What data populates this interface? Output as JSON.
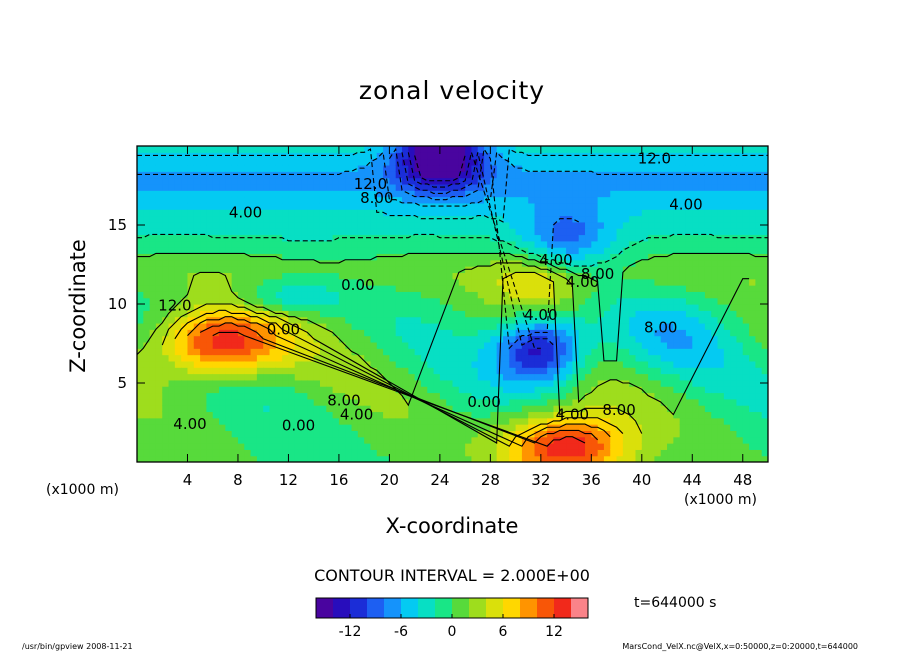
{
  "chart_data": {
    "type": "heatmap",
    "title": "zonal velocity",
    "xlabel": "X-coordinate",
    "ylabel": "Z-coordinate",
    "x_unit": "(x1000 m)",
    "z_unit": "(x1000 m)",
    "xlim": [
      0,
      50
    ],
    "ylim": [
      0,
      20
    ],
    "x_ticks": [
      4,
      8,
      12,
      16,
      20,
      24,
      28,
      32,
      36,
      40,
      44,
      48
    ],
    "y_ticks": [
      5,
      10,
      15
    ],
    "contour_interval_text": "CONTOUR INTERVAL = 2.000E+00",
    "time_text": "t=644000 s",
    "colorbar": {
      "range": [
        -16,
        16
      ],
      "ticks": [
        -12,
        -6,
        0,
        6,
        12
      ]
    },
    "contour_labels": [
      {
        "text": "12.0",
        "x": 41,
        "y": 19.2
      },
      {
        "text": "12.0",
        "x": 18.5,
        "y": 17.6
      },
      {
        "text": "8.00",
        "x": 19,
        "y": 16.7
      },
      {
        "text": "4.00",
        "x": 8.6,
        "y": 15.8
      },
      {
        "text": "4.00",
        "x": 43.5,
        "y": 16.3
      },
      {
        "text": "4.00",
        "x": 33.2,
        "y": 12.8
      },
      {
        "text": "4.00",
        "x": 35.3,
        "y": 11.4
      },
      {
        "text": "8.00",
        "x": 36.5,
        "y": 11.9
      },
      {
        "text": "0.00",
        "x": 17.5,
        "y": 11.2
      },
      {
        "text": "12.0",
        "x": 3,
        "y": 9.9
      },
      {
        "text": "0.00",
        "x": 11.6,
        "y": 8.4
      },
      {
        "text": "8.00",
        "x": 41.5,
        "y": 8.5
      },
      {
        "text": "4.00",
        "x": 32,
        "y": 9.3
      },
      {
        "text": "8.00",
        "x": 16.4,
        "y": 3.9
      },
      {
        "text": "4.00",
        "x": 17.4,
        "y": 3.0
      },
      {
        "text": "0.00",
        "x": 27.5,
        "y": 3.8
      },
      {
        "text": "4.00",
        "x": 34.5,
        "y": 3.0
      },
      {
        "text": "8.00",
        "x": 38.2,
        "y": 3.3
      },
      {
        "text": "4.00",
        "x": 4.2,
        "y": 2.4
      },
      {
        "text": "0.00",
        "x": 12.8,
        "y": 2.3
      }
    ],
    "features": [
      {
        "kind": "max",
        "value": 16,
        "x": 6.5,
        "y": 7.5
      },
      {
        "kind": "max",
        "value": 16,
        "x": 34,
        "y": 1.0
      },
      {
        "kind": "min",
        "value": -16,
        "x": 32,
        "y": 7.2
      },
      {
        "kind": "min",
        "value": -16,
        "x": 24,
        "y": 19.6
      },
      {
        "kind": "max",
        "value": 6,
        "x": 32,
        "y": 11.2
      },
      {
        "kind": "min",
        "value": -8,
        "x": 34,
        "y": 14
      }
    ]
  },
  "footer": {
    "left": "/usr/bin/gpview   2008-11-21",
    "right": "MarsCond_VelX.nc@VelX,x=0:50000,z=0:20000,t=644000"
  }
}
